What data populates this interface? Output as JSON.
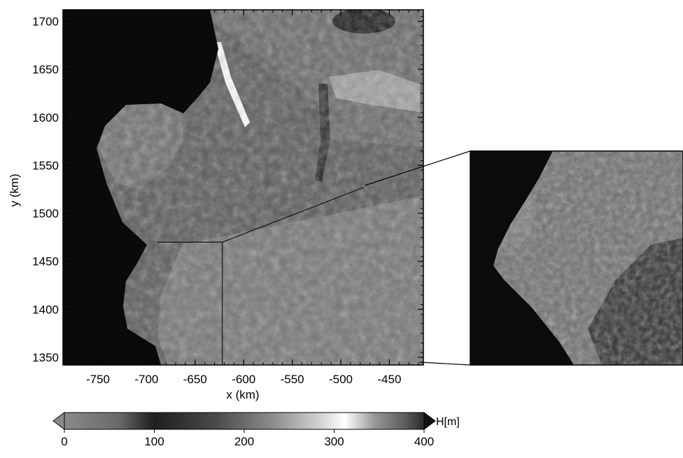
{
  "map": {
    "xlabel": "x (km)",
    "ylabel": "y (km)",
    "x_ticks": [
      -750,
      -700,
      -650,
      -600,
      -550,
      -500,
      -450
    ],
    "y_ticks": [
      1350,
      1400,
      1450,
      1500,
      1550,
      1600,
      1650,
      1700
    ],
    "x_range": [
      -786,
      -415
    ],
    "y_range": [
      1342,
      1712
    ],
    "profile_line_x": -622,
    "profile_line_y": 1470
  },
  "colorbar": {
    "label": "H[m]",
    "ticks": [
      "0",
      "100",
      "200",
      "300",
      "400"
    ],
    "range": [
      0,
      400
    ],
    "extend": "both"
  },
  "inset": {
    "type": "zoomed view of the lower-right region"
  }
}
